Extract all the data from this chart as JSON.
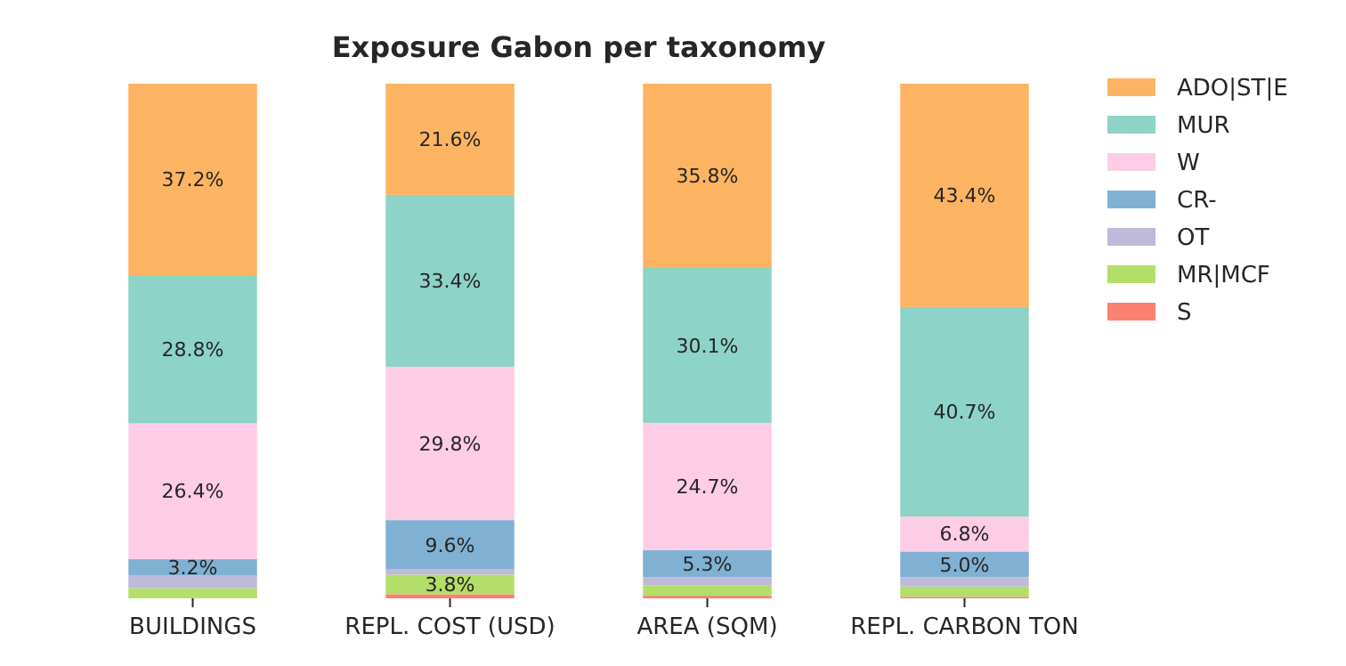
{
  "chart_data": {
    "type": "bar",
    "title": "Exposure Gabon per taxonomy",
    "categories": [
      "BUILDINGS",
      "REPL. COST (USD)",
      "AREA (SQM)",
      "REPL. CARBON TON"
    ],
    "stacked": true,
    "ylim": [
      0,
      100
    ],
    "tick_labels": "x",
    "legend": "top right",
    "grid": false,
    "series": [
      {
        "name": "S",
        "color": "#fb8072",
        "values": [
          0,
          0.8,
          0.5,
          0.3
        ],
        "value_labels": [
          null,
          null,
          null,
          null
        ]
      },
      {
        "name": "MR|MCF",
        "color": "#b3de69",
        "values": [
          2.0,
          3.8,
          2.0,
          2.0
        ],
        "value_labels": [
          null,
          "3.8%",
          null,
          null
        ]
      },
      {
        "name": "OT",
        "color": "#bebada",
        "values": [
          2.4,
          1.0,
          1.6,
          1.8
        ],
        "value_labels": [
          null,
          null,
          null,
          null
        ]
      },
      {
        "name": "CR-",
        "color": "#80b1d3",
        "values": [
          3.2,
          9.6,
          5.3,
          5.0
        ],
        "value_labels": [
          "3.2%",
          "9.6%",
          "5.3%",
          "5.0%"
        ]
      },
      {
        "name": "W",
        "color": "#fccde5",
        "values": [
          26.4,
          29.8,
          24.7,
          6.8
        ],
        "value_labels": [
          "26.4%",
          "29.8%",
          "24.7%",
          "6.8%"
        ]
      },
      {
        "name": "MUR",
        "color": "#8dd3c7",
        "values": [
          28.8,
          33.4,
          30.1,
          40.7
        ],
        "value_labels": [
          "28.8%",
          "33.4%",
          "30.1%",
          "40.7%"
        ]
      },
      {
        "name": "ADO|ST|E",
        "color": "#fdb462",
        "values": [
          37.2,
          21.6,
          35.8,
          43.4
        ],
        "value_labels": [
          "37.2%",
          "21.6%",
          "35.8%",
          "43.4%"
        ]
      }
    ]
  }
}
